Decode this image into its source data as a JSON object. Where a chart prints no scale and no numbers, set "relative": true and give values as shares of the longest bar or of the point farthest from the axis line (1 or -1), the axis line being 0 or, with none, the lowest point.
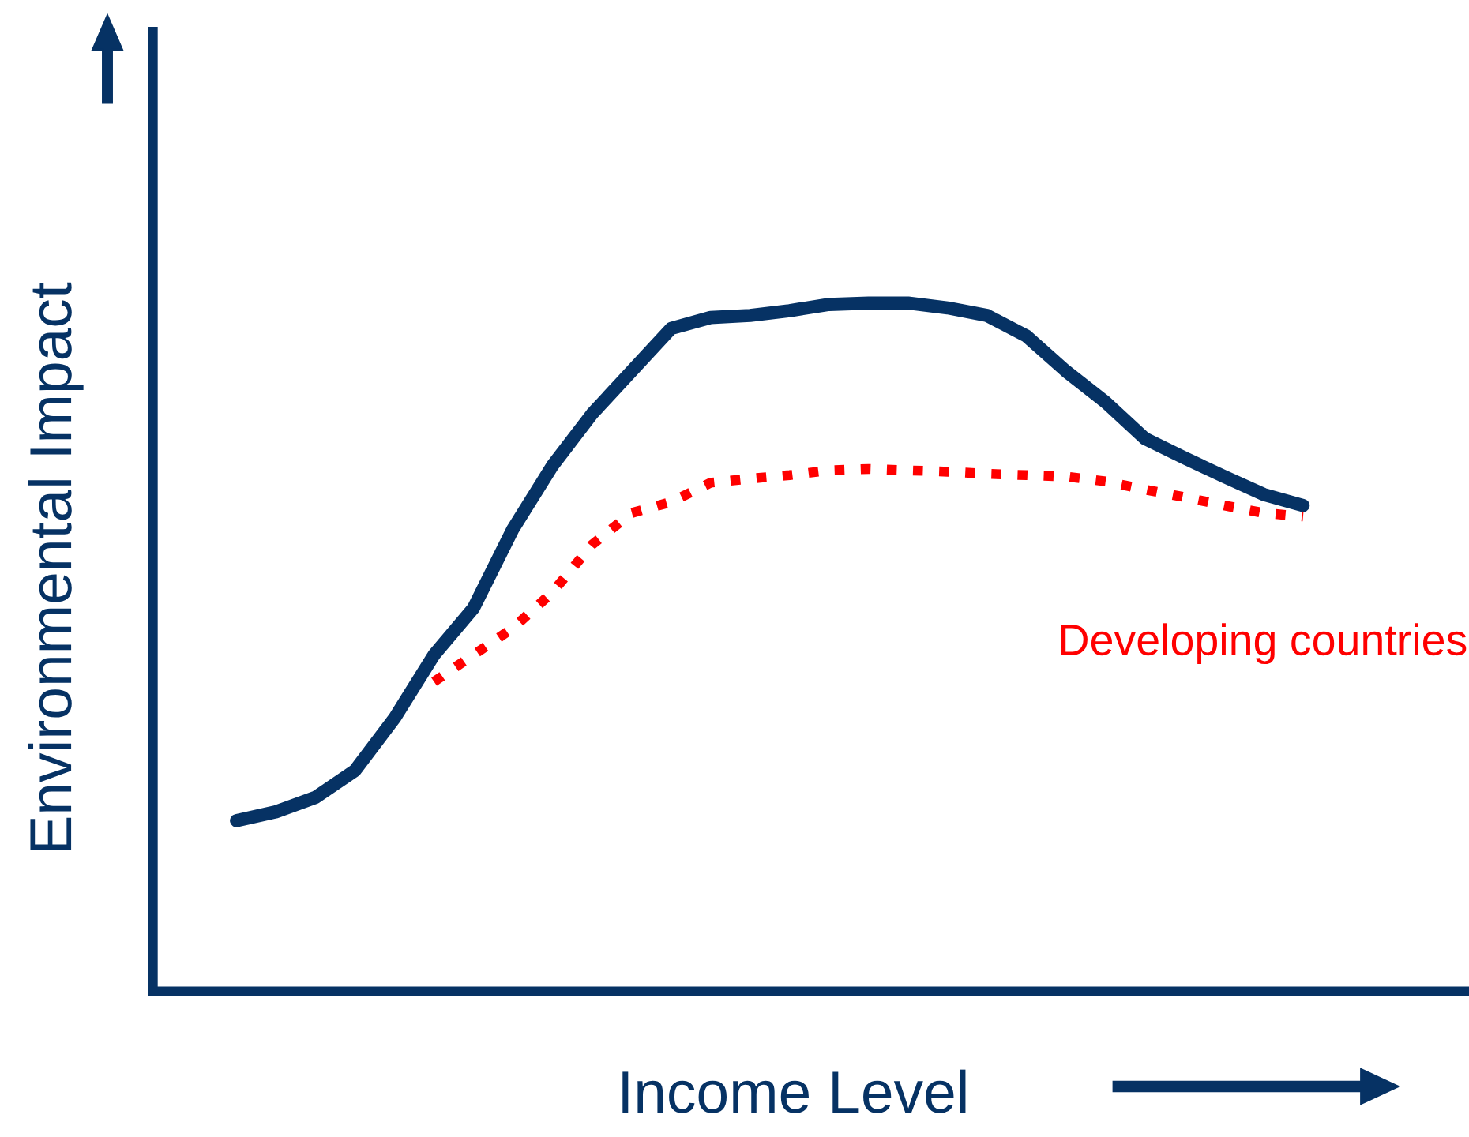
{
  "chart_data": {
    "type": "line",
    "relative": true,
    "xlabel": "Income Level",
    "ylabel": "Environmental Impact",
    "categories": [
      null,
      null,
      null,
      null,
      null,
      null,
      null,
      null,
      null,
      null,
      null,
      null,
      null,
      null,
      null,
      null,
      null,
      null,
      null,
      null,
      null,
      null,
      null,
      null,
      null,
      null,
      null,
      null
    ],
    "series": [
      {
        "color": "#063264",
        "line_style": "solid",
        "values": [
          0.248,
          0.261,
          0.282,
          0.321,
          0.397,
          0.489,
          0.557,
          0.672,
          0.764,
          0.839,
          0.901,
          0.963,
          0.979,
          0.982,
          0.989,
          0.998,
          1,
          1,
          0.993,
          0.982,
          0.952,
          0.901,
          0.856,
          0.803,
          0.775,
          0.748,
          0.722,
          0.706
        ]
      },
      {
        "name": "Developing countries",
        "color": "#ff0000",
        "line_style": "dotted",
        "values": [
          null,
          null,
          null,
          null,
          null,
          0.45,
          0.489,
          0.528,
          0.58,
          0.649,
          0.695,
          0.711,
          0.739,
          0.745,
          0.75,
          0.757,
          0.759,
          0.757,
          0.755,
          0.752,
          0.75,
          0.748,
          0.741,
          0.729,
          0.718,
          0.706,
          0.695,
          0.69
        ]
      }
    ],
    "legend": false,
    "marker": "none"
  }
}
